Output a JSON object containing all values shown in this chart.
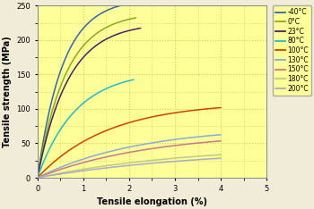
{
  "xlabel": "Tensile elongation (%)",
  "ylabel": "Tensile strength (MPa)",
  "xlim": [
    0,
    5
  ],
  "ylim": [
    0,
    250
  ],
  "xticks": [
    0,
    1,
    2,
    3,
    4,
    5
  ],
  "yticks": [
    0,
    50,
    100,
    150,
    200,
    250
  ],
  "background_color": "#FFFF99",
  "outer_background": "#F0ECD8",
  "grid_color": "#CCCC55",
  "curves": [
    {
      "label": "-40°C",
      "color": "#3366AA",
      "A": 260,
      "k": 1.8,
      "x_end": 2.05
    },
    {
      "label": "0°C",
      "color": "#88AA22",
      "A": 240,
      "k": 1.6,
      "x_end": 2.15
    },
    {
      "label": "23°C",
      "color": "#442266",
      "A": 225,
      "k": 1.5,
      "x_end": 2.25
    },
    {
      "label": "80°C",
      "color": "#22BBCC",
      "A": 155,
      "k": 1.2,
      "x_end": 2.1
    },
    {
      "label": "100°C",
      "color": "#CC4400",
      "A": 110,
      "k": 0.65,
      "x_end": 4.0
    },
    {
      "label": "130°C",
      "color": "#88AADD",
      "A": 75,
      "k": 0.45,
      "x_end": 4.0
    },
    {
      "label": "150°C",
      "color": "#CC7788",
      "A": 67,
      "k": 0.4,
      "x_end": 4.0
    },
    {
      "label": "180°C",
      "color": "#BBCC88",
      "A": 48,
      "k": 0.3,
      "x_end": 4.0
    },
    {
      "label": "200°C",
      "color": "#AAAACC",
      "A": 43,
      "k": 0.27,
      "x_end": 4.0
    }
  ]
}
